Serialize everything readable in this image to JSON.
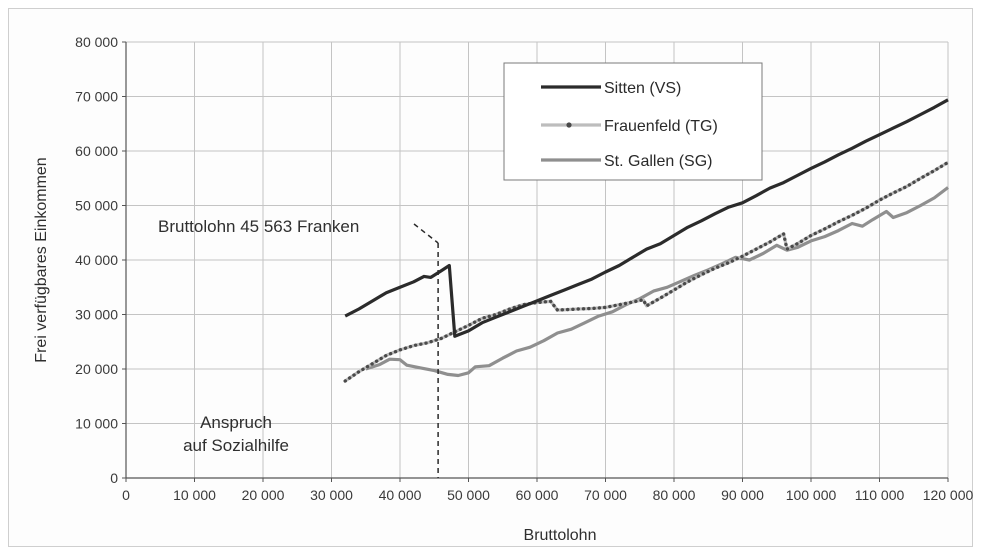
{
  "chart_data": {
    "type": "line",
    "xlabel": "Bruttolohn",
    "ylabel": "Frei verfügbares Einkommen",
    "xlim": [
      0,
      120000
    ],
    "ylim": [
      0,
      80000
    ],
    "grid": true,
    "legend_position": "top-right",
    "x_ticks": [
      "0",
      "10 000",
      "20 000",
      "30 000",
      "40 000",
      "50 000",
      "60 000",
      "70 000",
      "80 000",
      "90 000",
      "100 000",
      "110 000",
      "120 000"
    ],
    "y_ticks": [
      "0",
      "10 000",
      "20 000",
      "30 000",
      "40 000",
      "50 000",
      "60 000",
      "70 000",
      "80 000"
    ],
    "annotations": {
      "bruttolohn": "Bruttolohn 45 563 Franken",
      "bruttolohn_x": 45563,
      "sozialhilfe_line1": "Anspruch",
      "sozialhilfe_line2": "auf Sozialhilfe"
    },
    "series": [
      {
        "name": "Sitten (VS)",
        "color": "#2b2b2b",
        "style": "solid-dark",
        "points": [
          [
            32000,
            29700
          ],
          [
            34000,
            31000
          ],
          [
            36000,
            32500
          ],
          [
            38000,
            34000
          ],
          [
            40000,
            35000
          ],
          [
            42000,
            36000
          ],
          [
            43500,
            37000
          ],
          [
            44500,
            36800
          ],
          [
            46000,
            38000
          ],
          [
            47200,
            39000
          ],
          [
            48000,
            26000
          ],
          [
            50000,
            27000
          ],
          [
            52000,
            28500
          ],
          [
            54000,
            29500
          ],
          [
            56000,
            30500
          ],
          [
            58000,
            31500
          ],
          [
            60000,
            32500
          ],
          [
            62000,
            33500
          ],
          [
            64000,
            34500
          ],
          [
            66000,
            35500
          ],
          [
            68000,
            36500
          ],
          [
            70000,
            37800
          ],
          [
            72000,
            39000
          ],
          [
            74000,
            40500
          ],
          [
            76000,
            42000
          ],
          [
            78000,
            43000
          ],
          [
            80000,
            44500
          ],
          [
            82000,
            46000
          ],
          [
            84000,
            47200
          ],
          [
            86000,
            48500
          ],
          [
            88000,
            49700
          ],
          [
            90000,
            50500
          ],
          [
            92000,
            51800
          ],
          [
            94000,
            53200
          ],
          [
            96000,
            54200
          ],
          [
            98000,
            55500
          ],
          [
            100000,
            56800
          ],
          [
            102000,
            58000
          ],
          [
            104000,
            59300
          ],
          [
            106000,
            60500
          ],
          [
            108000,
            61800
          ],
          [
            110000,
            63000
          ],
          [
            112000,
            64200
          ],
          [
            114000,
            65400
          ],
          [
            116000,
            66700
          ],
          [
            118000,
            68000
          ],
          [
            120000,
            69400
          ]
        ]
      },
      {
        "name": "Frauenfeld (TG)",
        "color": "#bdbdbd",
        "style": "light-with-dots",
        "points": [
          [
            32000,
            17800
          ],
          [
            34000,
            19500
          ],
          [
            36000,
            21000
          ],
          [
            38000,
            22500
          ],
          [
            40000,
            23500
          ],
          [
            42000,
            24300
          ],
          [
            44000,
            24800
          ],
          [
            46000,
            25600
          ],
          [
            48000,
            26800
          ],
          [
            50000,
            28000
          ],
          [
            52000,
            29300
          ],
          [
            54000,
            30000
          ],
          [
            56000,
            31000
          ],
          [
            58000,
            31800
          ],
          [
            60000,
            32200
          ],
          [
            62000,
            32400
          ],
          [
            63000,
            30800
          ],
          [
            66000,
            31000
          ],
          [
            68000,
            31100
          ],
          [
            70000,
            31300
          ],
          [
            72000,
            31800
          ],
          [
            74000,
            32300
          ],
          [
            75500,
            32700
          ],
          [
            76000,
            31600
          ],
          [
            78000,
            33000
          ],
          [
            80000,
            34500
          ],
          [
            82000,
            36000
          ],
          [
            84000,
            37300
          ],
          [
            86000,
            38500
          ],
          [
            88000,
            39500
          ],
          [
            90000,
            40700
          ],
          [
            92000,
            42000
          ],
          [
            94000,
            43300
          ],
          [
            96000,
            44800
          ],
          [
            96500,
            42000
          ],
          [
            98000,
            43000
          ],
          [
            100000,
            44500
          ],
          [
            102000,
            45700
          ],
          [
            104000,
            47000
          ],
          [
            106000,
            48200
          ],
          [
            108000,
            49500
          ],
          [
            110000,
            51000
          ],
          [
            112000,
            52300
          ],
          [
            114000,
            53500
          ],
          [
            116000,
            55000
          ],
          [
            118000,
            56400
          ],
          [
            120000,
            57900
          ]
        ]
      },
      {
        "name": "St. Gallen (SG)",
        "color": "#8f8f8f",
        "style": "solid-medium",
        "points": [
          [
            35000,
            20000
          ],
          [
            37000,
            20800
          ],
          [
            38500,
            21800
          ],
          [
            40000,
            21700
          ],
          [
            41000,
            20700
          ],
          [
            43000,
            20200
          ],
          [
            45000,
            19700
          ],
          [
            47000,
            19000
          ],
          [
            48500,
            18800
          ],
          [
            50000,
            19300
          ],
          [
            51000,
            20400
          ],
          [
            53000,
            20600
          ],
          [
            55000,
            22000
          ],
          [
            57000,
            23300
          ],
          [
            59000,
            24000
          ],
          [
            61000,
            25200
          ],
          [
            63000,
            26600
          ],
          [
            65000,
            27300
          ],
          [
            67000,
            28500
          ],
          [
            69000,
            29700
          ],
          [
            71000,
            30500
          ],
          [
            73000,
            31800
          ],
          [
            75000,
            32900
          ],
          [
            77000,
            34300
          ],
          [
            79000,
            35000
          ],
          [
            81000,
            36100
          ],
          [
            83000,
            37200
          ],
          [
            85000,
            38200
          ],
          [
            87000,
            39300
          ],
          [
            89000,
            40500
          ],
          [
            91000,
            40000
          ],
          [
            93000,
            41200
          ],
          [
            95000,
            42700
          ],
          [
            96500,
            41800
          ],
          [
            98000,
            42300
          ],
          [
            100000,
            43500
          ],
          [
            102000,
            44300
          ],
          [
            104000,
            45400
          ],
          [
            106000,
            46700
          ],
          [
            107500,
            46200
          ],
          [
            109000,
            47400
          ],
          [
            111000,
            48900
          ],
          [
            112000,
            47800
          ],
          [
            114000,
            48700
          ],
          [
            116000,
            50000
          ],
          [
            118000,
            51400
          ],
          [
            120000,
            53300
          ]
        ]
      }
    ]
  }
}
